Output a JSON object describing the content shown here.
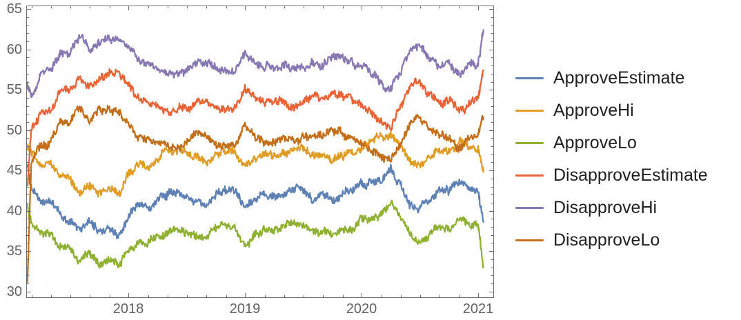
{
  "chart_data": {
    "type": "line",
    "title": "",
    "xlabel": "",
    "ylabel": "",
    "grid": false,
    "legend_position": "right-center",
    "xlim": [
      2017.124,
      2021.136
    ],
    "ylim": [
      29.2,
      65.45
    ],
    "x_axis": {
      "tick_values": [
        2018,
        2019,
        2020,
        2021
      ],
      "tick_labels": [
        "2018",
        "2019",
        "2020",
        "2021"
      ],
      "minor_tick_step_years": 0.166667
    },
    "y_axis": {
      "tick_values": [
        30,
        35,
        40,
        45,
        50,
        55,
        60,
        65
      ],
      "tick_labels": [
        "30",
        "35",
        "40",
        "45",
        "50",
        "55",
        "60",
        "65"
      ],
      "minor_tick_step": 1
    },
    "x": [
      2017.135,
      2017.167,
      2017.25,
      2017.333,
      2017.417,
      2017.5,
      2017.583,
      2017.667,
      2017.75,
      2017.833,
      2017.917,
      2018.0,
      2018.083,
      2018.167,
      2018.25,
      2018.333,
      2018.417,
      2018.5,
      2018.583,
      2018.667,
      2018.75,
      2018.833,
      2018.917,
      2019.0,
      2019.083,
      2019.167,
      2019.25,
      2019.333,
      2019.417,
      2019.5,
      2019.583,
      2019.667,
      2019.75,
      2019.833,
      2019.917,
      2020.0,
      2020.083,
      2020.167,
      2020.25,
      2020.333,
      2020.417,
      2020.5,
      2020.583,
      2020.667,
      2020.75,
      2020.833,
      2020.917,
      2021.0,
      2021.045
    ],
    "series": [
      {
        "name": "ApproveEstimate",
        "color": "#5e81b5",
        "values": [
          45.5,
          43.0,
          41.2,
          41.3,
          39.6,
          39.2,
          37.8,
          38.6,
          37.4,
          37.9,
          36.9,
          39.2,
          40.6,
          40.4,
          41.2,
          42.1,
          42.4,
          42.0,
          41.7,
          41.1,
          42.4,
          42.3,
          42.1,
          40.3,
          41.2,
          42.1,
          41.8,
          42.0,
          42.6,
          42.4,
          41.6,
          42.1,
          41.3,
          41.7,
          42.3,
          43.1,
          43.6,
          44.2,
          45.4,
          43.2,
          41.0,
          40.2,
          41.6,
          42.6,
          42.3,
          43.9,
          42.8,
          42.4,
          38.6
        ]
      },
      {
        "name": "ApproveHi",
        "color": "#e19c24",
        "values": [
          48.0,
          47.3,
          45.5,
          45.6,
          44.2,
          43.9,
          42.6,
          43.4,
          42.3,
          42.9,
          42.0,
          44.4,
          45.8,
          45.6,
          46.4,
          47.3,
          47.6,
          47.2,
          46.9,
          46.3,
          47.6,
          47.5,
          47.3,
          45.5,
          46.4,
          47.3,
          47.0,
          47.2,
          47.8,
          47.6,
          46.8,
          47.3,
          46.5,
          46.9,
          47.5,
          48.3,
          48.8,
          49.4,
          50.0,
          48.4,
          46.2,
          45.4,
          46.8,
          47.8,
          47.5,
          49.1,
          48.0,
          47.6,
          44.8
        ]
      },
      {
        "name": "ApproveLo",
        "color": "#8fb131",
        "values": [
          40.5,
          38.8,
          37.0,
          37.1,
          35.4,
          35.0,
          33.6,
          34.4,
          33.2,
          33.7,
          33.0,
          34.9,
          36.3,
          36.1,
          36.9,
          37.8,
          38.1,
          37.7,
          37.4,
          36.8,
          38.1,
          38.0,
          37.8,
          36.0,
          36.9,
          37.8,
          37.5,
          37.7,
          38.3,
          38.1,
          37.3,
          37.8,
          37.0,
          37.4,
          38.0,
          38.8,
          39.3,
          39.9,
          41.1,
          38.9,
          36.7,
          35.9,
          37.3,
          38.3,
          38.0,
          39.6,
          38.5,
          38.1,
          33.2
        ]
      },
      {
        "name": "DisapproveEstimate",
        "color": "#eb6235",
        "values": [
          43.0,
          49.8,
          52.2,
          52.6,
          54.8,
          55.2,
          56.8,
          55.6,
          56.7,
          56.9,
          56.9,
          55.6,
          53.6,
          53.3,
          52.9,
          52.3,
          52.1,
          52.6,
          53.6,
          53.9,
          52.9,
          52.7,
          52.6,
          55.1,
          53.8,
          52.9,
          53.2,
          53.6,
          52.9,
          53.4,
          54.1,
          53.4,
          54.4,
          54.1,
          53.4,
          53.0,
          52.4,
          51.2,
          50.4,
          52.6,
          55.2,
          55.7,
          54.4,
          53.4,
          53.6,
          52.3,
          53.1,
          53.6,
          57.4
        ]
      },
      {
        "name": "DisapproveHi",
        "color": "#8778b3",
        "values": [
          55.5,
          54.3,
          56.7,
          57.1,
          59.3,
          59.7,
          61.9,
          60.1,
          61.2,
          61.4,
          61.4,
          60.3,
          58.3,
          58.0,
          57.6,
          57.0,
          56.8,
          57.3,
          58.3,
          58.6,
          57.6,
          57.4,
          57.3,
          59.8,
          58.5,
          57.6,
          57.9,
          58.3,
          57.6,
          58.1,
          58.8,
          58.1,
          59.1,
          58.8,
          58.1,
          57.7,
          57.1,
          55.9,
          55.1,
          57.3,
          59.9,
          60.4,
          59.1,
          58.1,
          58.3,
          57.0,
          57.8,
          58.3,
          62.4
        ]
      },
      {
        "name": "DisapproveLo",
        "color": "#c56e1a",
        "values": [
          31.5,
          45.6,
          48.0,
          48.4,
          50.6,
          51.0,
          52.6,
          51.4,
          52.5,
          52.7,
          52.7,
          51.3,
          49.3,
          49.0,
          48.6,
          48.0,
          47.8,
          48.3,
          49.3,
          49.6,
          48.6,
          48.4,
          48.3,
          50.8,
          49.5,
          48.6,
          48.9,
          49.3,
          48.6,
          49.1,
          49.8,
          49.1,
          50.1,
          49.8,
          49.1,
          48.7,
          48.1,
          46.9,
          46.1,
          48.3,
          50.9,
          51.4,
          50.1,
          49.1,
          49.3,
          48.0,
          48.8,
          49.3,
          51.6
        ]
      }
    ],
    "style": {
      "background": "#ffffff",
      "frame_color": "#707070",
      "tick_label_color": "#626262",
      "legend_text_color": "#212121",
      "line_width": 2.3,
      "noise_seed": 7,
      "noise_jitter": 0.42,
      "noise_walk_step": 0.3,
      "upsample": 16
    }
  }
}
